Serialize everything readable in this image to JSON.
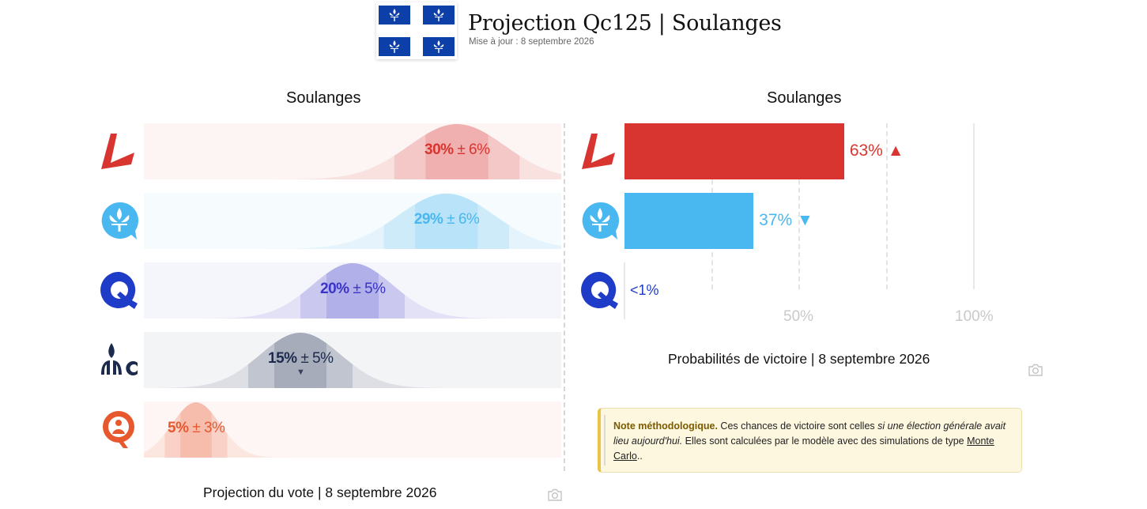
{
  "header": {
    "title": "Projection Qc125 | Soulanges",
    "subtitle": "Mise à jour : 8 septembre 2026"
  },
  "colors": {
    "plq": "#d83530",
    "pq": "#4ab8f0",
    "caq": "#1e3cc8",
    "pcq": "#1c2a4e",
    "qs": "#e8582e"
  },
  "chart_data": [
    {
      "type": "bar",
      "title": "Soulanges",
      "caption": "Projection du vote | 8 septembre 2026",
      "series": [
        {
          "icon": "plq-logo-icon",
          "value": 30,
          "margin": 6,
          "label": "30%",
          "margin_label": "± 6%",
          "color": "#d83530",
          "trend": ""
        },
        {
          "icon": "pq-logo-icon",
          "value": 29,
          "margin": 6,
          "label": "29%",
          "margin_label": "± 6%",
          "color": "#4ab8f0",
          "trend": ""
        },
        {
          "icon": "caq-logo-icon",
          "value": 20,
          "margin": 5,
          "label": "20%",
          "margin_label": "± 5%",
          "color": "#3a35c8",
          "trend": ""
        },
        {
          "icon": "pcq-logo-icon",
          "value": 15,
          "margin": 5,
          "label": "15%",
          "margin_label": "± 5%",
          "color": "#1c2a4e",
          "trend": "down"
        },
        {
          "icon": "qs-logo-icon",
          "value": 5,
          "margin": 3,
          "label": "5%",
          "margin_label": "± 3%",
          "color": "#e8582e",
          "trend": ""
        }
      ],
      "xlim": [
        0,
        40
      ]
    },
    {
      "type": "bar",
      "title": "Soulanges",
      "caption": "Probabilités de victoire | 8 septembre 2026",
      "series": [
        {
          "icon": "plq-logo-icon",
          "value": 63,
          "label": "63%",
          "trend": "up",
          "color": "#d83530"
        },
        {
          "icon": "pq-logo-icon",
          "value": 37,
          "label": "37%",
          "trend": "down",
          "color": "#4ab8f0"
        },
        {
          "icon": "caq-logo-icon",
          "value": 0,
          "label": "<1%",
          "trend": "",
          "color": "#1e3cc8"
        }
      ],
      "xlim": [
        0,
        100
      ],
      "ticks": [
        "50%",
        "100%"
      ],
      "grid": true
    }
  ],
  "note": {
    "heading": "Note méthodologique.",
    "text1": "Ces chances de victoire sont celles",
    "emph": "si une élection générale avait lieu aujourd'hui.",
    "text2": "Elles sont calculées par le modèle avec des simulations de type",
    "link": "Monte Carlo",
    "end": ".."
  }
}
